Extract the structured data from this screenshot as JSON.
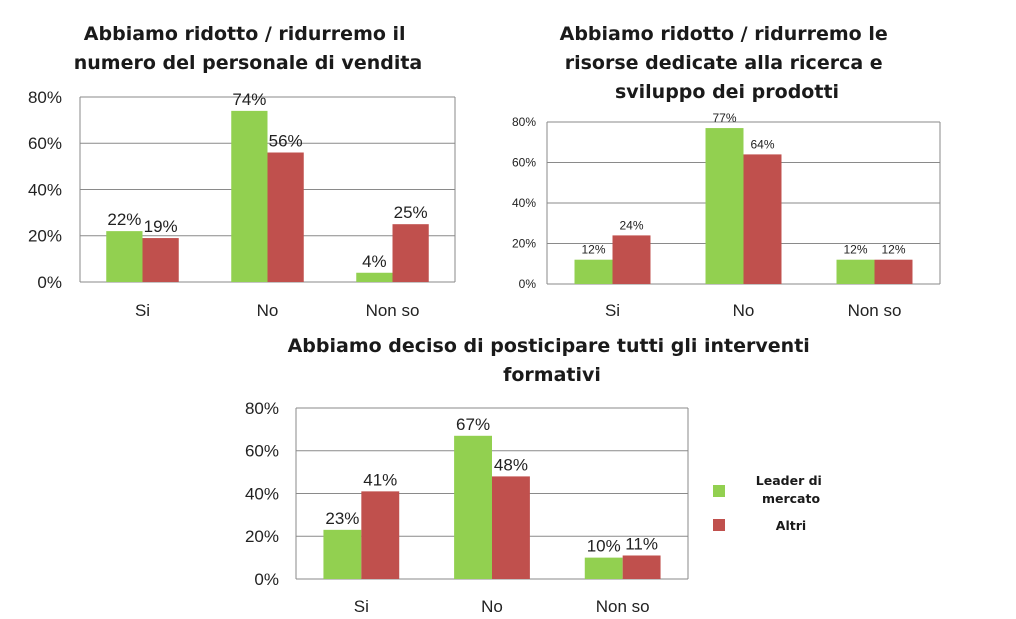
{
  "legend": {
    "items": [
      {
        "label": "Leader di mercato",
        "color": "#92d050"
      },
      {
        "label": "Altri",
        "color": "#c0504d"
      }
    ]
  },
  "chart_data": [
    {
      "type": "bar",
      "title": "Abbiamo ridotto / ridurremo il numero del personale di vendita",
      "categories": [
        "Si",
        "No",
        "Non so"
      ],
      "ylim": [
        0,
        80
      ],
      "yticks": [
        "0%",
        "20%",
        "40%",
        "60%",
        "80%"
      ],
      "grid": true,
      "series": [
        {
          "name": "Leader di mercato",
          "values": [
            22,
            74,
            4
          ],
          "labels": [
            "22%",
            "74%",
            "4%"
          ]
        },
        {
          "name": "Altri",
          "values": [
            19,
            56,
            25
          ],
          "labels": [
            "19%",
            "56%",
            "25%"
          ]
        }
      ]
    },
    {
      "type": "bar",
      "title": "Abbiamo ridotto / ridurremo le risorse dedicate alla ricerca e sviluppo dei prodotti",
      "categories": [
        "Si",
        "No",
        "Non so"
      ],
      "ylim": [
        0,
        80
      ],
      "yticks": [
        "0%",
        "20%",
        "40%",
        "60%",
        "80%"
      ],
      "grid": true,
      "series": [
        {
          "name": "Leader di mercato",
          "values": [
            12,
            77,
            12
          ],
          "labels": [
            "12%",
            "77%",
            "12%"
          ]
        },
        {
          "name": "Altri",
          "values": [
            24,
            64,
            12
          ],
          "labels": [
            "24%",
            "64%",
            "12%"
          ]
        }
      ]
    },
    {
      "type": "bar",
      "title": "Abbiamo deciso di posticipare tutti gli interventi formativi",
      "categories": [
        "Si",
        "No",
        "Non so"
      ],
      "ylim": [
        0,
        80
      ],
      "yticks": [
        "0%",
        "20%",
        "40%",
        "60%",
        "80%"
      ],
      "grid": true,
      "series": [
        {
          "name": "Leader di mercato",
          "values": [
            23,
            67,
            10
          ],
          "labels": [
            "23%",
            "67%",
            "10%"
          ]
        },
        {
          "name": "Altri",
          "values": [
            41,
            48,
            11
          ],
          "labels": [
            "41%",
            "48%",
            "11%"
          ]
        }
      ]
    }
  ]
}
